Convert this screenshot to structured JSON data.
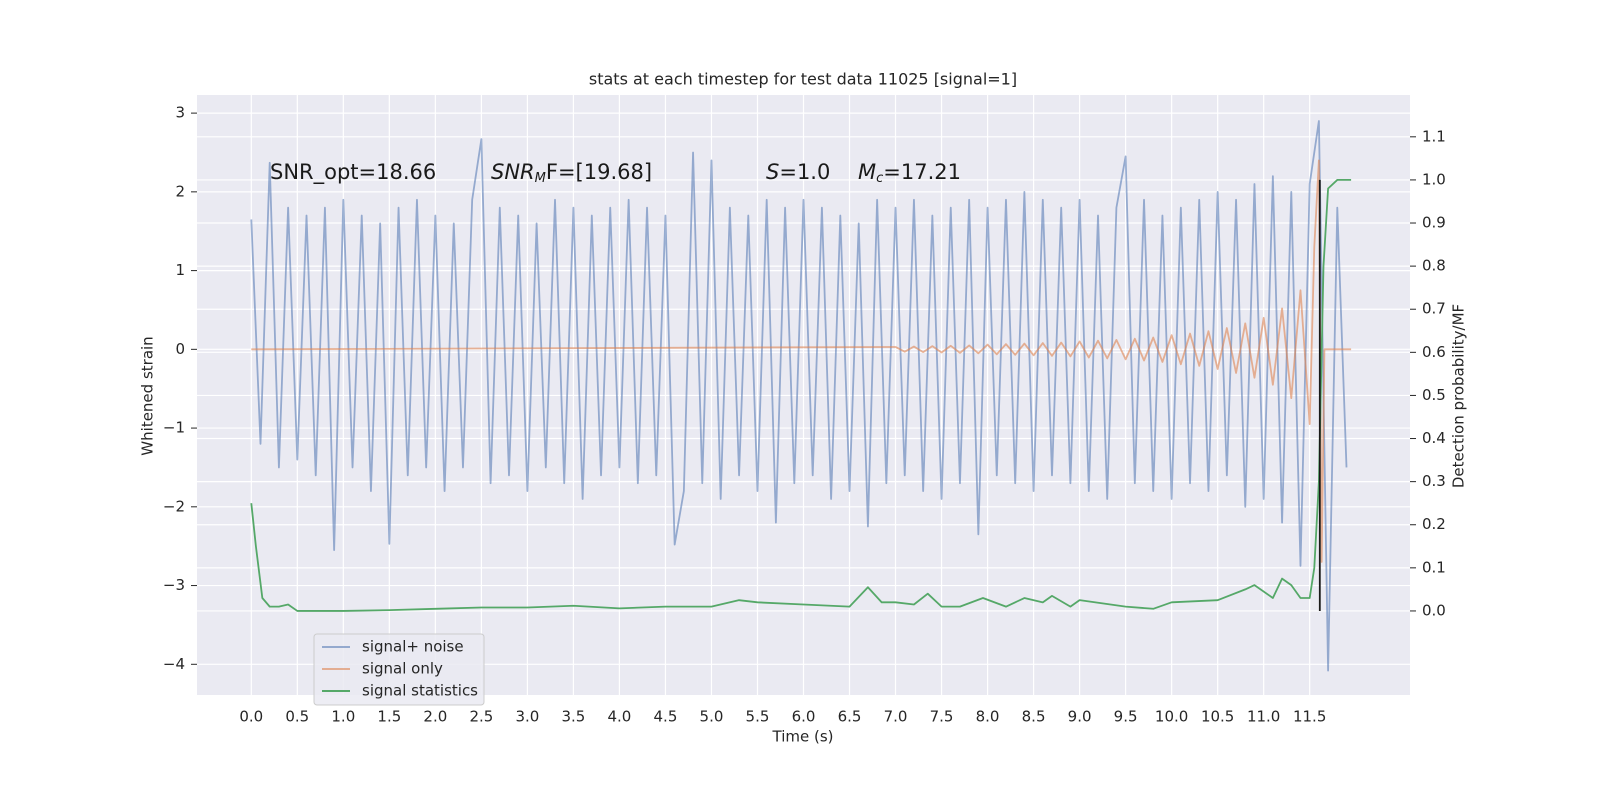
{
  "chart_data": {
    "type": "line",
    "title": "stats at each timestep for test data 11025 [signal=1]",
    "xlabel": "Time (s)",
    "ylabel": "Whitened strain",
    "y2label": "Detection probability/MF",
    "annotations": [
      {
        "text": "SNR_opt=18.66"
      },
      {
        "italic": "SNR",
        "sub": "M",
        "text": "F=[19.68]"
      },
      {
        "italic": "S",
        "text": "=1.0"
      },
      {
        "italic": "M",
        "sub": "c",
        "text": "=17.21"
      }
    ],
    "xlim": [
      -0.59,
      12.59
    ],
    "xticks": [
      {
        "value": 0,
        "label": "0.0"
      },
      0.5,
      {
        "value": 1,
        "label": "1.0"
      },
      1.5,
      {
        "value": 2,
        "label": "2.0"
      },
      2.5,
      {
        "value": 3,
        "label": "3.0"
      },
      3.5,
      {
        "value": 4,
        "label": "4.0"
      },
      4.5,
      {
        "value": 5,
        "label": "5.0"
      },
      5.5,
      {
        "value": 6,
        "label": "6.0"
      },
      6.5,
      {
        "value": 7,
        "label": "7.0"
      },
      7.5,
      {
        "value": 8,
        "label": "8.0"
      },
      8.5,
      {
        "value": 9,
        "label": "9.0"
      },
      9.5,
      {
        "value": 10,
        "label": "10.0"
      },
      10.5,
      {
        "value": 11,
        "label": "11.0"
      },
      11.5
    ],
    "ylim": [
      -4.39,
      3.23
    ],
    "yticks": [
      {
        "value": -4,
        "label": "−4"
      },
      {
        "value": -3,
        "label": "−3"
      },
      {
        "value": -2,
        "label": "−2"
      },
      {
        "value": -1,
        "label": "−1"
      },
      0,
      1,
      2,
      3
    ],
    "y2lim": [
      -0.195,
      1.197
    ],
    "y2ticks": [
      {
        "value": 0,
        "label": "0.0"
      },
      0.1,
      0.2,
      0.3,
      0.4,
      0.5,
      0.6,
      0.7,
      0.8,
      0.9,
      {
        "value": 1,
        "label": "1.0"
      },
      1.1
    ],
    "grid": true,
    "legend": "lower left",
    "series": [
      {
        "name": "signal+ noise",
        "color": "#4c72b0",
        "alpha": 0.55,
        "x": [
          0.0,
          0.1,
          0.2,
          0.3,
          0.4,
          0.5,
          0.6,
          0.7,
          0.8,
          0.9,
          1.0,
          1.1,
          1.2,
          1.3,
          1.4,
          1.5,
          1.6,
          1.7,
          1.8,
          1.9,
          2.0,
          2.1,
          2.2,
          2.3,
          2.4,
          2.5,
          2.6,
          2.7,
          2.8,
          2.9,
          3.0,
          3.1,
          3.2,
          3.3,
          3.4,
          3.5,
          3.6,
          3.7,
          3.8,
          3.9,
          4.0,
          4.1,
          4.2,
          4.3,
          4.4,
          4.5,
          4.6,
          4.7,
          4.8,
          4.9,
          5.0,
          5.1,
          5.2,
          5.3,
          5.4,
          5.5,
          5.6,
          5.7,
          5.8,
          5.9,
          6.0,
          6.1,
          6.2,
          6.3,
          6.4,
          6.5,
          6.6,
          6.7,
          6.8,
          6.9,
          7.0,
          7.1,
          7.2,
          7.3,
          7.4,
          7.5,
          7.6,
          7.7,
          7.8,
          7.9,
          8.0,
          8.1,
          8.2,
          8.3,
          8.4,
          8.5,
          8.6,
          8.7,
          8.8,
          8.9,
          9.0,
          9.1,
          9.2,
          9.3,
          9.4,
          9.5,
          9.6,
          9.7,
          9.8,
          9.9,
          10.0,
          10.1,
          10.2,
          10.3,
          10.4,
          10.5,
          10.6,
          10.7,
          10.8,
          10.9,
          11.0,
          11.1,
          11.2,
          11.3,
          11.4,
          11.5,
          11.6,
          11.7,
          11.8,
          11.9
        ],
        "values": [
          1.65,
          -1.2,
          2.37,
          -1.5,
          1.8,
          -1.4,
          1.7,
          -1.6,
          1.8,
          -2.55,
          1.9,
          -1.5,
          1.7,
          -1.8,
          1.6,
          -2.47,
          1.8,
          -1.6,
          1.9,
          -1.5,
          1.7,
          -1.8,
          1.6,
          -1.5,
          1.9,
          2.67,
          -1.7,
          1.8,
          -1.6,
          1.7,
          -1.8,
          1.6,
          -1.5,
          1.9,
          -1.7,
          1.8,
          -1.9,
          1.7,
          -1.6,
          1.8,
          -1.5,
          1.9,
          -1.7,
          1.8,
          -1.6,
          1.7,
          -2.48,
          -1.8,
          2.5,
          -1.7,
          2.4,
          -1.9,
          1.8,
          -1.6,
          1.7,
          -1.8,
          1.9,
          -2.2,
          1.8,
          -1.7,
          1.9,
          -1.6,
          1.8,
          -1.9,
          1.7,
          -1.8,
          1.6,
          -2.25,
          1.9,
          -1.7,
          1.8,
          -1.6,
          1.9,
          -1.8,
          1.7,
          -1.9,
          1.8,
          -1.7,
          1.9,
          -2.35,
          1.8,
          -1.6,
          1.9,
          -1.7,
          2.0,
          -1.8,
          1.9,
          -1.6,
          1.8,
          -1.7,
          1.9,
          -1.8,
          1.7,
          -1.9,
          1.8,
          2.45,
          -1.7,
          1.9,
          -1.8,
          1.7,
          -1.9,
          1.8,
          -1.7,
          1.9,
          -1.8,
          2.0,
          -1.6,
          1.9,
          -2.0,
          2.1,
          -1.9,
          2.2,
          -2.2,
          2.0,
          -2.75,
          2.1,
          2.9,
          -4.08,
          1.8,
          -1.5
        ]
      },
      {
        "name": "signal only",
        "color": "#dd8452",
        "alpha": 0.6,
        "x": [
          0.0,
          7.0,
          7.1,
          7.2,
          7.3,
          7.4,
          7.5,
          7.6,
          7.7,
          7.8,
          7.9,
          8.0,
          8.1,
          8.2,
          8.3,
          8.4,
          8.5,
          8.6,
          8.7,
          8.8,
          8.9,
          9.0,
          9.1,
          9.2,
          9.3,
          9.4,
          9.5,
          9.6,
          9.7,
          9.8,
          9.9,
          10.0,
          10.1,
          10.2,
          10.3,
          10.4,
          10.5,
          10.6,
          10.7,
          10.8,
          10.9,
          11.0,
          11.1,
          11.2,
          11.3,
          11.4,
          11.5,
          11.55,
          11.6,
          11.63,
          11.66,
          11.95
        ],
        "values": [
          0,
          0.03,
          -0.03,
          0.035,
          -0.035,
          0.04,
          -0.04,
          0.045,
          -0.045,
          0.05,
          -0.05,
          0.06,
          -0.063,
          0.066,
          -0.07,
          0.073,
          -0.076,
          0.08,
          -0.083,
          0.086,
          -0.09,
          0.1,
          -0.105,
          0.11,
          -0.115,
          0.12,
          -0.127,
          0.135,
          -0.142,
          0.15,
          -0.16,
          0.18,
          -0.19,
          0.2,
          -0.21,
          0.23,
          -0.25,
          0.27,
          -0.3,
          0.33,
          -0.36,
          0.4,
          -0.45,
          0.52,
          -0.62,
          0.75,
          -0.95,
          1.3,
          2.4,
          -2.7,
          0,
          0
        ]
      },
      {
        "name": "signal statistics",
        "color": "#55a868",
        "alpha": 1,
        "axis": "y2",
        "x": [
          0.0,
          0.05,
          0.12,
          0.2,
          0.3,
          0.4,
          0.5,
          1.0,
          1.5,
          2.0,
          2.5,
          3.0,
          3.5,
          4.0,
          4.5,
          5.0,
          5.3,
          5.5,
          6.0,
          6.5,
          6.7,
          6.85,
          7.0,
          7.2,
          7.35,
          7.5,
          7.7,
          7.95,
          8.2,
          8.4,
          8.6,
          8.7,
          8.9,
          9.0,
          9.5,
          9.8,
          10.0,
          10.5,
          10.8,
          10.9,
          11.1,
          11.2,
          11.3,
          11.4,
          11.5,
          11.55,
          11.6,
          11.65,
          11.7,
          11.8,
          11.95
        ],
        "values": [
          0.25,
          0.15,
          0.03,
          0.01,
          0.01,
          0.015,
          0.0,
          0.0,
          0.002,
          0.005,
          0.008,
          0.008,
          0.012,
          0.006,
          0.01,
          0.01,
          0.025,
          0.02,
          0.015,
          0.01,
          0.055,
          0.02,
          0.02,
          0.015,
          0.04,
          0.01,
          0.01,
          0.03,
          0.01,
          0.03,
          0.02,
          0.035,
          0.01,
          0.025,
          0.01,
          0.005,
          0.02,
          0.025,
          0.05,
          0.06,
          0.03,
          0.075,
          0.06,
          0.03,
          0.03,
          0.1,
          0.3,
          0.8,
          0.98,
          1.0,
          1.0
        ]
      }
    ],
    "vline": {
      "x": 11.61,
      "y2": [
        0.0,
        1.0
      ],
      "color": "#1a1a1a"
    }
  }
}
